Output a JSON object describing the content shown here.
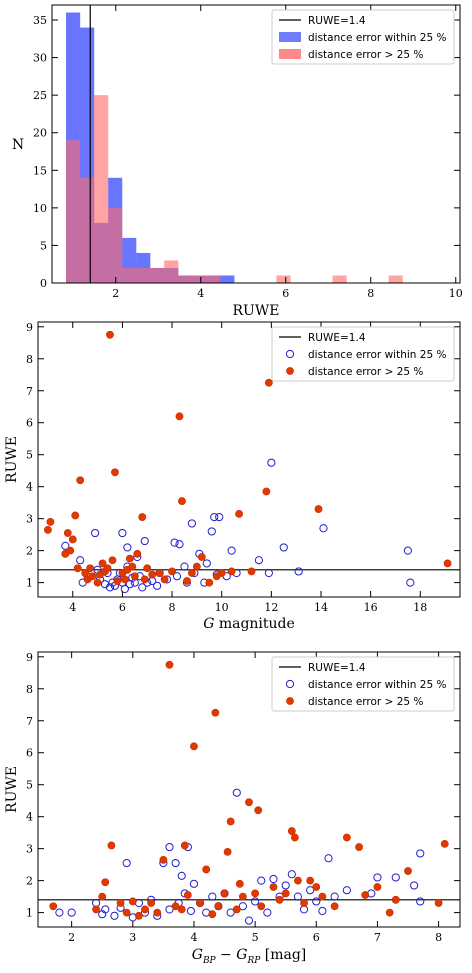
{
  "chart_data": [
    {
      "type": "bar",
      "subtype": "histogram",
      "xlabel": "RUWE",
      "ylabel": "N",
      "xlim": [
        0.5,
        10.1
      ],
      "ylim": [
        0,
        37
      ],
      "xticks": [
        2,
        4,
        6,
        8,
        10
      ],
      "yticks": [
        0,
        5,
        10,
        15,
        20,
        25,
        30,
        35
      ],
      "bin_width": 0.333,
      "legend_position": "top-right",
      "reference_line": {
        "name": "RUWE=1.4",
        "x": 1.4,
        "color": "#000000"
      },
      "series": [
        {
          "name": "distance error within 25 %",
          "color": "#4d5dff",
          "bin_starts": [
            0.83,
            1.16,
            1.49,
            1.82,
            2.15,
            2.48,
            2.81,
            3.14,
            3.47,
            3.8,
            4.13,
            4.46
          ],
          "counts": [
            36,
            34,
            8,
            14,
            6,
            4,
            2,
            2,
            1,
            1,
            1,
            1
          ]
        },
        {
          "name": "distance error > 25 %",
          "color": "#ff6b6b",
          "bin_starts": [
            0.83,
            1.16,
            1.49,
            1.82,
            2.15,
            2.48,
            2.81,
            3.14,
            3.47,
            3.8,
            4.13,
            5.78,
            7.1,
            8.42
          ],
          "counts": [
            19,
            14,
            25,
            10,
            2,
            2,
            2,
            3,
            1,
            1,
            1,
            1,
            1,
            1
          ]
        }
      ]
    },
    {
      "type": "scatter",
      "xlabel_main": "G",
      "xlabel_rest": " magnitude",
      "ylabel": "RUWE",
      "xlim": [
        2.6,
        19.6
      ],
      "ylim": [
        0.55,
        9.15
      ],
      "xticks": [
        4,
        6,
        8,
        10,
        12,
        14,
        16,
        18
      ],
      "yticks": [
        1,
        2,
        3,
        4,
        5,
        6,
        7,
        8,
        9
      ],
      "legend_position": "top-right",
      "reference_line": {
        "name": "RUWE=1.4",
        "y": 1.4
      },
      "series": [
        {
          "name": "distance error within 25 %",
          "marker": "open-circle",
          "color": "#1f1fd0",
          "points": [
            [
              3.7,
              2.15
            ],
            [
              4.3,
              1.7
            ],
            [
              4.4,
              1.0
            ],
            [
              4.6,
              1.2
            ],
            [
              4.9,
              2.55
            ],
            [
              5.0,
              1.4
            ],
            [
              5.1,
              1.1
            ],
            [
              5.3,
              0.95
            ],
            [
              5.4,
              1.3
            ],
            [
              5.5,
              0.85
            ],
            [
              5.6,
              1.0
            ],
            [
              5.7,
              0.9
            ],
            [
              5.8,
              1.1
            ],
            [
              5.9,
              1.3
            ],
            [
              6.0,
              2.55
            ],
            [
              6.0,
              1.0
            ],
            [
              6.1,
              0.8
            ],
            [
              6.2,
              2.1
            ],
            [
              6.2,
              1.5
            ],
            [
              6.3,
              0.95
            ],
            [
              6.4,
              1.15
            ],
            [
              6.5,
              1.0
            ],
            [
              6.6,
              1.8
            ],
            [
              6.7,
              1.2
            ],
            [
              6.8,
              0.85
            ],
            [
              6.9,
              2.3
            ],
            [
              7.0,
              1.0
            ],
            [
              7.2,
              1.05
            ],
            [
              7.4,
              0.9
            ],
            [
              7.5,
              1.3
            ],
            [
              7.8,
              1.1
            ],
            [
              8.1,
              2.25
            ],
            [
              8.2,
              1.2
            ],
            [
              8.3,
              2.2
            ],
            [
              8.5,
              1.5
            ],
            [
              8.6,
              1.0
            ],
            [
              8.8,
              2.85
            ],
            [
              8.9,
              1.3
            ],
            [
              9.1,
              1.9
            ],
            [
              9.3,
              1.0
            ],
            [
              9.4,
              1.6
            ],
            [
              9.6,
              2.6
            ],
            [
              9.7,
              3.05
            ],
            [
              9.8,
              1.25
            ],
            [
              9.9,
              3.05
            ],
            [
              10.2,
              1.2
            ],
            [
              10.4,
              2.0
            ],
            [
              10.6,
              1.3
            ],
            [
              11.5,
              1.7
            ],
            [
              11.9,
              1.3
            ],
            [
              12.0,
              4.75
            ],
            [
              12.5,
              2.1
            ],
            [
              13.1,
              1.35
            ],
            [
              14.1,
              2.7
            ],
            [
              17.5,
              2.0
            ],
            [
              17.6,
              1.0
            ]
          ]
        },
        {
          "name": "distance error > 25 %",
          "marker": "filled-circle",
          "color": "#e03a00",
          "points": [
            [
              3.0,
              2.65
            ],
            [
              3.1,
              2.9
            ],
            [
              3.7,
              1.9
            ],
            [
              3.8,
              2.55
            ],
            [
              3.9,
              2.0
            ],
            [
              4.0,
              2.35
            ],
            [
              4.1,
              3.1
            ],
            [
              4.2,
              1.45
            ],
            [
              4.3,
              4.2
            ],
            [
              4.5,
              1.3
            ],
            [
              4.6,
              1.1
            ],
            [
              4.7,
              1.45
            ],
            [
              4.8,
              1.2
            ],
            [
              5.0,
              1.0
            ],
            [
              5.1,
              1.25
            ],
            [
              5.2,
              1.6
            ],
            [
              5.3,
              1.35
            ],
            [
              5.4,
              1.45
            ],
            [
              5.5,
              8.75
            ],
            [
              5.6,
              1.7
            ],
            [
              5.7,
              4.45
            ],
            [
              5.8,
              1.05
            ],
            [
              6.0,
              1.3
            ],
            [
              6.1,
              1.1
            ],
            [
              6.2,
              1.4
            ],
            [
              6.3,
              1.75
            ],
            [
              6.4,
              1.5
            ],
            [
              6.5,
              1.2
            ],
            [
              6.6,
              1.9
            ],
            [
              6.8,
              3.05
            ],
            [
              6.9,
              1.1
            ],
            [
              7.0,
              1.45
            ],
            [
              7.2,
              1.25
            ],
            [
              7.5,
              1.3
            ],
            [
              7.7,
              1.1
            ],
            [
              8.0,
              1.35
            ],
            [
              8.3,
              6.2
            ],
            [
              8.4,
              3.55
            ],
            [
              8.6,
              1.05
            ],
            [
              8.8,
              1.3
            ],
            [
              9.0,
              1.5
            ],
            [
              9.2,
              1.8
            ],
            [
              9.5,
              1.0
            ],
            [
              9.8,
              1.2
            ],
            [
              10.0,
              1.3
            ],
            [
              10.4,
              1.35
            ],
            [
              10.7,
              3.15
            ],
            [
              11.2,
              1.35
            ],
            [
              11.8,
              3.85
            ],
            [
              11.9,
              7.25
            ],
            [
              13.9,
              3.3
            ],
            [
              19.1,
              1.6
            ]
          ]
        }
      ]
    },
    {
      "type": "scatter",
      "xlabel_main": "G",
      "xlabel_sub1": "BP",
      "xlabel_mid": " − G",
      "xlabel_sub2": "RP",
      "xlabel_rest": " [mag]",
      "ylabel": "RUWE",
      "xlim": [
        1.45,
        8.35
      ],
      "ylim": [
        0.55,
        9.15
      ],
      "xticks": [
        2,
        3,
        4,
        5,
        6,
        7,
        8
      ],
      "yticks": [
        1,
        2,
        3,
        4,
        5,
        6,
        7,
        8,
        9
      ],
      "legend_position": "top-right",
      "reference_line": {
        "name": "RUWE=1.4",
        "y": 1.4
      },
      "series": [
        {
          "name": "distance error within 25 %",
          "marker": "open-circle",
          "color": "#1f1fd0",
          "points": [
            [
              1.8,
              1.0
            ],
            [
              2.0,
              1.0
            ],
            [
              2.4,
              1.3
            ],
            [
              2.5,
              0.95
            ],
            [
              2.55,
              1.1
            ],
            [
              2.7,
              0.9
            ],
            [
              2.8,
              1.15
            ],
            [
              2.9,
              2.55
            ],
            [
              3.0,
              0.85
            ],
            [
              3.1,
              1.3
            ],
            [
              3.2,
              1.0
            ],
            [
              3.3,
              1.4
            ],
            [
              3.4,
              0.9
            ],
            [
              3.5,
              2.55
            ],
            [
              3.6,
              3.05
            ],
            [
              3.6,
              1.1
            ],
            [
              3.7,
              2.55
            ],
            [
              3.75,
              1.3
            ],
            [
              3.8,
              2.15
            ],
            [
              3.85,
              1.6
            ],
            [
              3.9,
              3.05
            ],
            [
              3.95,
              1.05
            ],
            [
              4.0,
              1.9
            ],
            [
              4.1,
              1.3
            ],
            [
              4.2,
              1.0
            ],
            [
              4.3,
              1.5
            ],
            [
              4.4,
              1.2
            ],
            [
              4.5,
              1.6
            ],
            [
              4.6,
              1.0
            ],
            [
              4.7,
              4.75
            ],
            [
              4.8,
              1.2
            ],
            [
              4.9,
              0.75
            ],
            [
              5.0,
              1.35
            ],
            [
              5.1,
              2.0
            ],
            [
              5.2,
              1.0
            ],
            [
              5.3,
              2.05
            ],
            [
              5.4,
              1.5
            ],
            [
              5.5,
              1.85
            ],
            [
              5.6,
              2.2
            ],
            [
              5.7,
              1.5
            ],
            [
              5.8,
              1.1
            ],
            [
              5.9,
              1.7
            ],
            [
              6.0,
              1.35
            ],
            [
              6.1,
              1.05
            ],
            [
              6.2,
              2.7
            ],
            [
              6.3,
              1.5
            ],
            [
              6.5,
              1.7
            ],
            [
              6.9,
              1.6
            ],
            [
              7.0,
              2.1
            ],
            [
              7.3,
              2.1
            ],
            [
              7.6,
              1.85
            ],
            [
              7.7,
              2.85
            ],
            [
              7.7,
              1.35
            ]
          ]
        },
        {
          "name": "distance error > 25 %",
          "marker": "filled-circle",
          "color": "#e03a00",
          "points": [
            [
              1.7,
              1.2
            ],
            [
              2.4,
              1.1
            ],
            [
              2.5,
              1.5
            ],
            [
              2.55,
              1.95
            ],
            [
              2.65,
              3.1
            ],
            [
              2.8,
              1.3
            ],
            [
              2.9,
              1.0
            ],
            [
              3.0,
              1.35
            ],
            [
              3.1,
              0.9
            ],
            [
              3.2,
              1.1
            ],
            [
              3.3,
              1.3
            ],
            [
              3.4,
              1.0
            ],
            [
              3.5,
              2.65
            ],
            [
              3.6,
              8.75
            ],
            [
              3.7,
              1.2
            ],
            [
              3.8,
              1.1
            ],
            [
              3.85,
              3.1
            ],
            [
              3.9,
              1.55
            ],
            [
              4.0,
              6.2
            ],
            [
              4.1,
              1.3
            ],
            [
              4.2,
              2.35
            ],
            [
              4.3,
              0.95
            ],
            [
              4.35,
              7.25
            ],
            [
              4.4,
              1.2
            ],
            [
              4.5,
              1.6
            ],
            [
              4.55,
              2.9
            ],
            [
              4.6,
              3.85
            ],
            [
              4.7,
              1.1
            ],
            [
              4.75,
              1.9
            ],
            [
              4.8,
              1.5
            ],
            [
              4.9,
              4.45
            ],
            [
              5.0,
              1.6
            ],
            [
              5.05,
              4.2
            ],
            [
              5.1,
              1.2
            ],
            [
              5.3,
              1.8
            ],
            [
              5.4,
              1.4
            ],
            [
              5.5,
              1.6
            ],
            [
              5.6,
              3.55
            ],
            [
              5.65,
              3.35
            ],
            [
              5.7,
              2.0
            ],
            [
              5.8,
              1.3
            ],
            [
              5.9,
              2.0
            ],
            [
              6.0,
              1.8
            ],
            [
              6.1,
              1.5
            ],
            [
              6.3,
              1.2
            ],
            [
              6.5,
              3.35
            ],
            [
              6.7,
              3.05
            ],
            [
              6.8,
              1.55
            ],
            [
              7.0,
              1.8
            ],
            [
              7.2,
              1.0
            ],
            [
              7.3,
              1.4
            ],
            [
              7.5,
              2.3
            ],
            [
              8.0,
              1.3
            ],
            [
              8.1,
              3.15
            ]
          ]
        }
      ]
    }
  ]
}
